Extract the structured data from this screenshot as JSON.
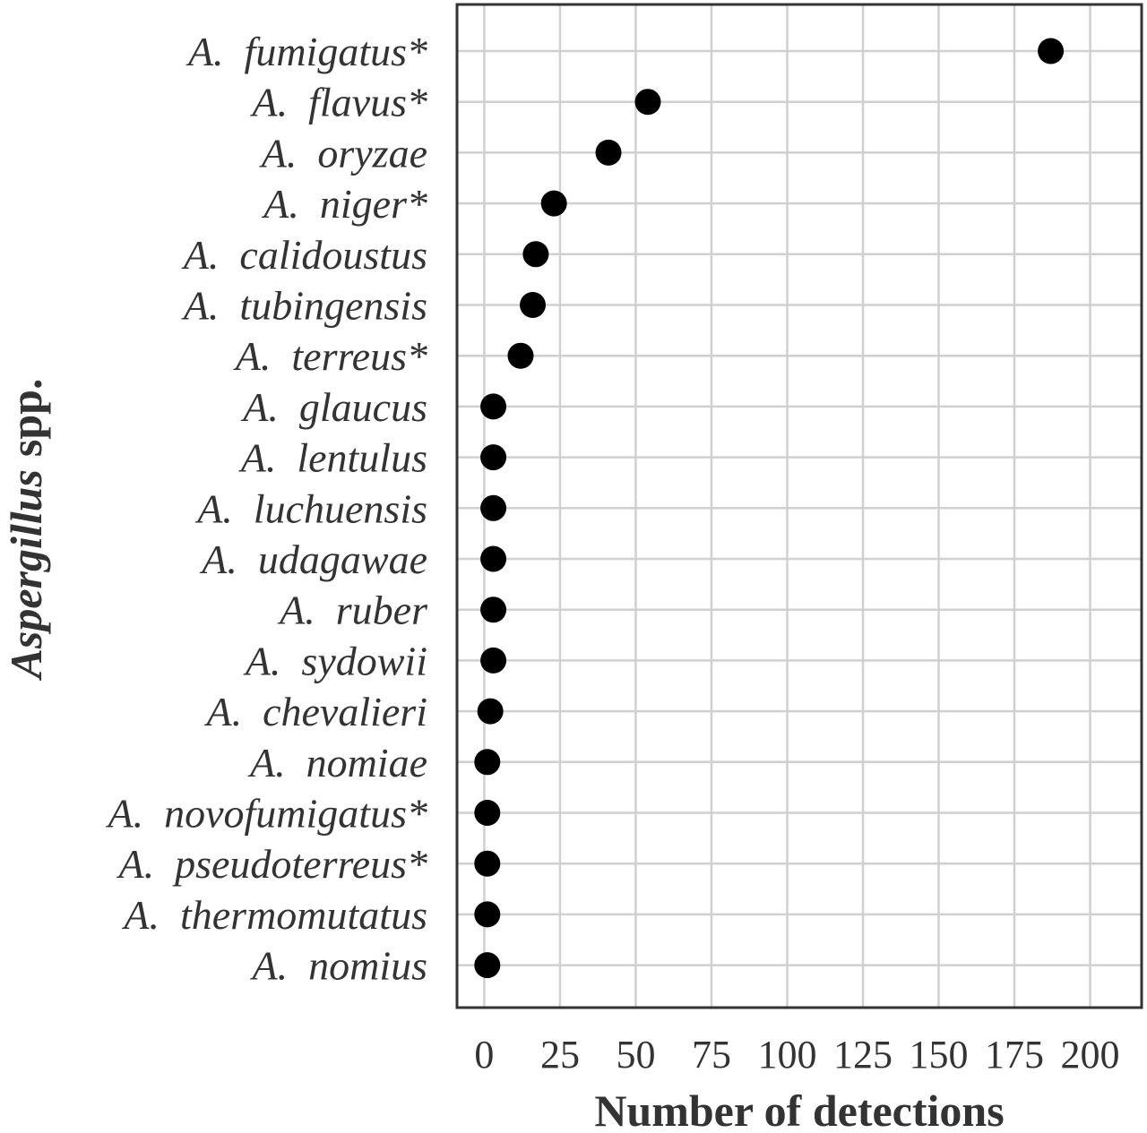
{
  "chart_data": {
    "type": "scatter",
    "xlabel": "Number of detections",
    "ylabel_italic": "Aspergillus",
    "ylabel_rest": "spp.",
    "xlim": [
      -9,
      217
    ],
    "xticks": [
      0,
      25,
      50,
      75,
      100,
      125,
      150,
      175,
      200
    ],
    "grid": true,
    "legend": "none",
    "categories": [
      "A.  fumigatus*",
      "A.  flavus*",
      "A.  oryzae",
      "A.  niger*",
      "A.  calidoustus",
      "A.  tubingensis",
      "A.  terreus*",
      "A.  glaucus",
      "A.  lentulus",
      "A.  luchuensis",
      "A.  udagawae",
      "A.  ruber",
      "A.  sydowii",
      "A.  chevalieri",
      "A.  nomiae",
      "A.  novofumigatus*",
      "A.  pseudoterreus*",
      "A.  thermomutatus",
      "A.  nomius"
    ],
    "values": [
      187,
      54,
      41,
      23,
      17,
      16,
      12,
      3,
      3,
      3,
      3,
      3,
      3,
      2,
      1,
      1,
      1,
      1,
      1
    ],
    "point_color": "#000000"
  }
}
